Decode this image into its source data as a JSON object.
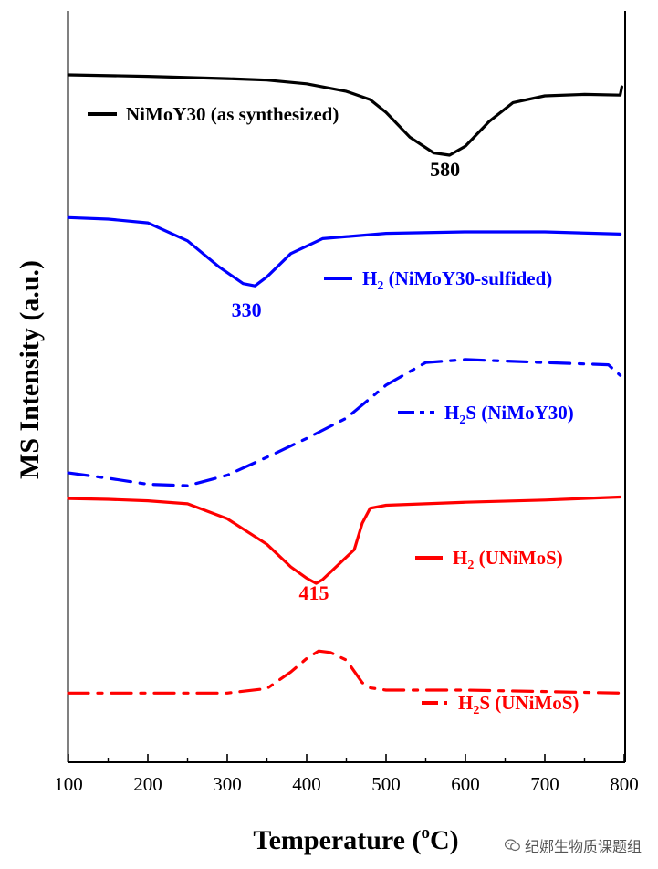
{
  "chart_data": {
    "type": "line",
    "xlabel": "Temperature (oC)",
    "xlabel_parts": {
      "prefix": "Temperature (",
      "sup": "o",
      "suffix": "C)"
    },
    "ylabel": "MS Intensity (a.u.)",
    "xlim": [
      100,
      800
    ],
    "x_ticks": [
      "100",
      "200",
      "300",
      "400",
      "500",
      "600",
      "700",
      "800"
    ],
    "ylim": [
      0,
      100
    ],
    "grid": false,
    "series": [
      {
        "name": "NiMoY30 (as synthesized)",
        "label_parts": {
          "pre": "",
          "sub": "",
          "post": "NiMoY30 (as synthesized)"
        },
        "color": "#000000",
        "style": "solid",
        "peak": {
          "x": 580,
          "label": "580",
          "y": 78
        },
        "x": [
          100,
          200,
          300,
          350,
          400,
          450,
          480,
          500,
          530,
          560,
          580,
          600,
          630,
          660,
          700,
          750,
          795,
          797
        ],
        "y": [
          91.5,
          91.3,
          91.0,
          90.8,
          90.3,
          89.3,
          88.2,
          86.5,
          83.2,
          81.1,
          80.8,
          82.0,
          85.3,
          87.8,
          88.7,
          88.9,
          88.8,
          89.9
        ]
      },
      {
        "name": "H2 (NiMoY30-sulfided)",
        "label_parts": {
          "pre": "H",
          "sub": "2",
          "post": " (NiMoY30-sulfided)"
        },
        "color": "#0000ff",
        "style": "solid",
        "peak": {
          "x": 330,
          "label": "330",
          "y": 59.3
        },
        "x": [
          100,
          150,
          200,
          250,
          290,
          320,
          335,
          350,
          380,
          420,
          500,
          600,
          700,
          795
        ],
        "y": [
          72.5,
          72.3,
          71.8,
          69.4,
          65.9,
          63.7,
          63.4,
          64.6,
          67.7,
          69.7,
          70.4,
          70.6,
          70.6,
          70.3
        ]
      },
      {
        "name": "H2S (NiMoY30)",
        "label_parts": {
          "pre": "H",
          "sub": "2",
          "post": "S (NiMoY30)"
        },
        "color": "#0000ff",
        "style": "dashdot",
        "x": [
          100,
          150,
          200,
          250,
          300,
          350,
          400,
          450,
          500,
          550,
          600,
          700,
          780,
          795
        ],
        "y": [
          38.5,
          37.8,
          37.0,
          36.8,
          38.2,
          40.6,
          43.1,
          45.8,
          50.2,
          53.2,
          53.6,
          53.2,
          52.9,
          51.5
        ]
      },
      {
        "name": "H2 (UNiMoS)",
        "label_parts": {
          "pre": "H",
          "sub": "2",
          "post": " (UNiMoS)"
        },
        "color": "#ff0000",
        "style": "solid",
        "peak": {
          "x": 415,
          "label": "415",
          "y": 21.6
        },
        "x": [
          100,
          150,
          200,
          250,
          300,
          350,
          380,
          400,
          412,
          420,
          440,
          460,
          470,
          480,
          500,
          600,
          700,
          795
        ],
        "y": [
          35.1,
          35.0,
          34.8,
          34.4,
          32.4,
          29.0,
          26.0,
          24.5,
          23.8,
          24.3,
          26.3,
          28.3,
          31.8,
          33.8,
          34.2,
          34.6,
          34.9,
          35.3
        ]
      },
      {
        "name": "H2S (UNiMoS)",
        "label_parts": {
          "pre": "H",
          "sub": "2",
          "post": "S (UNiMoS)"
        },
        "color": "#ff0000",
        "style": "dashdot",
        "x": [
          100,
          300,
          350,
          380,
          400,
          415,
          430,
          450,
          470,
          480,
          500,
          600,
          700,
          795
        ],
        "y": [
          9.2,
          9.2,
          9.8,
          12.0,
          13.8,
          14.8,
          14.6,
          13.6,
          10.6,
          9.9,
          9.6,
          9.6,
          9.4,
          9.2
        ]
      }
    ]
  },
  "watermark": {
    "text": "纪娜生物质课题组",
    "icon": "wechat-icon"
  }
}
